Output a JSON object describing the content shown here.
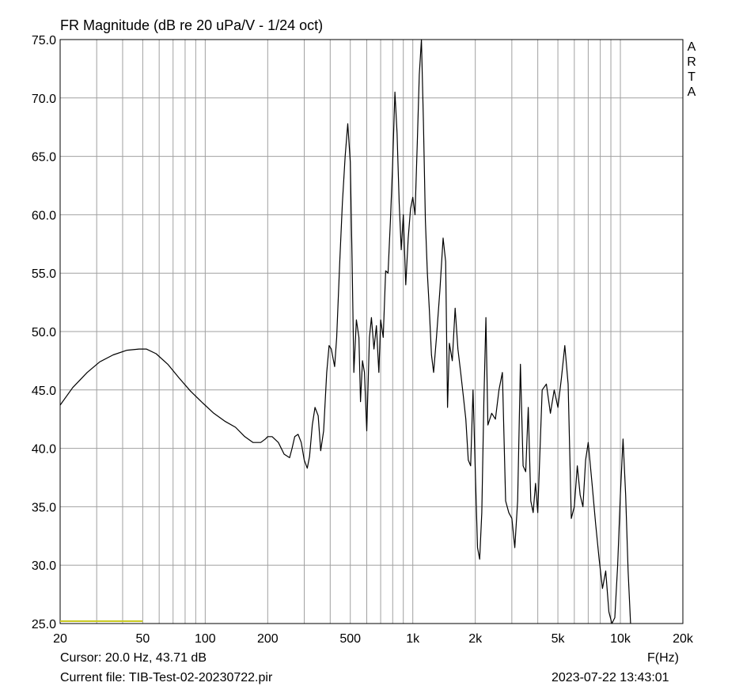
{
  "chart_data": {
    "type": "line",
    "title": "FR Magnitude (dB re 20 uPa/V - 1/24 oct)",
    "xlabel": "F(Hz)",
    "x_scale": "log",
    "xlim": [
      20,
      20000
    ],
    "ylim": [
      25.0,
      75.0
    ],
    "y_ticks": [
      75.0,
      70.0,
      65.0,
      60.0,
      55.0,
      50.0,
      45.0,
      40.0,
      35.0,
      30.0,
      25.0
    ],
    "y_tick_labels": [
      "75.0",
      "70.0",
      "65.0",
      "60.0",
      "55.0",
      "50.0",
      "45.0",
      "40.0",
      "35.0",
      "30.0",
      "25.0"
    ],
    "x_ticks": [
      20,
      50,
      100,
      200,
      500,
      1000,
      2000,
      5000,
      10000,
      20000
    ],
    "x_tick_labels": [
      "20",
      "50",
      "100",
      "200",
      "500",
      "1k",
      "2k",
      "5k",
      "10k",
      "20k"
    ],
    "grid": true,
    "series": [
      {
        "color": "#000000",
        "x": [
          20,
          23,
          27,
          31,
          36,
          42,
          48,
          52,
          58,
          66,
          75,
          85,
          97,
          110,
          125,
          140,
          155,
          170,
          185,
          195,
          200,
          210,
          225,
          240,
          255,
          262,
          270,
          280,
          290,
          300,
          310,
          318,
          328,
          338,
          350,
          360,
          372,
          385,
          395,
          405,
          420,
          430,
          445,
          458,
          472,
          486,
          500,
          510,
          520,
          535,
          550,
          560,
          572,
          585,
          600,
          618,
          632,
          650,
          668,
          686,
          700,
          720,
          740,
          760,
          780,
          800,
          820,
          840,
          860,
          880,
          900,
          925,
          950,
          975,
          1000,
          1025,
          1050,
          1075,
          1100,
          1125,
          1150,
          1175,
          1200,
          1230,
          1260,
          1300,
          1350,
          1400,
          1440,
          1470,
          1500,
          1550,
          1600,
          1650,
          1700,
          1750,
          1800,
          1850,
          1900,
          1950,
          2000,
          2050,
          2100,
          2150,
          2200,
          2250,
          2300,
          2400,
          2500,
          2600,
          2700,
          2800,
          2900,
          3000,
          3100,
          3200,
          3300,
          3400,
          3500,
          3600,
          3700,
          3800,
          3900,
          4000,
          4200,
          4400,
          4600,
          4800,
          5000,
          5200,
          5400,
          5600,
          5800,
          6000,
          6200,
          6400,
          6600,
          6800,
          7000,
          7300,
          7600,
          7900,
          8200,
          8500,
          8800,
          9100,
          9400,
          9700,
          10000,
          10300,
          10600,
          10900,
          11200
        ],
        "y": [
          43.7,
          45.2,
          46.5,
          47.4,
          48.0,
          48.4,
          48.5,
          48.5,
          48.1,
          47.2,
          46.0,
          44.9,
          43.9,
          43.0,
          42.3,
          41.8,
          41.0,
          40.5,
          40.5,
          40.8,
          41.0,
          41.0,
          40.5,
          39.5,
          39.2,
          40.0,
          41.0,
          41.2,
          40.5,
          39.0,
          38.3,
          39.3,
          42.0,
          43.5,
          42.8,
          39.8,
          41.5,
          46.5,
          48.8,
          48.5,
          47.0,
          49.5,
          56.0,
          61.0,
          65.0,
          67.8,
          64.5,
          56.0,
          46.5,
          51.0,
          49.5,
          44.0,
          47.5,
          46.5,
          41.5,
          49.5,
          51.2,
          48.5,
          50.5,
          46.5,
          51.0,
          49.5,
          55.2,
          55.0,
          59.5,
          64.5,
          70.5,
          67.0,
          61.0,
          57.0,
          60.0,
          54.0,
          58.0,
          60.5,
          61.5,
          60.0,
          66.0,
          72.0,
          75.0,
          68.0,
          59.5,
          55.0,
          52.0,
          48.0,
          46.5,
          49.5,
          53.5,
          58.0,
          56.0,
          43.5,
          49.0,
          47.5,
          52.0,
          48.5,
          46.5,
          44.5,
          42.5,
          39.0,
          38.5,
          45.0,
          38.0,
          31.5,
          30.5,
          34.5,
          44.0,
          51.2,
          42.0,
          43.0,
          42.5,
          45.0,
          46.5,
          35.5,
          34.5,
          34.0,
          31.5,
          35.5,
          47.2,
          38.5,
          38.0,
          43.5,
          35.5,
          34.5,
          37.0,
          34.5,
          45.0,
          45.5,
          43.0,
          45.0,
          43.5,
          46.0,
          48.8,
          45.5,
          34.0,
          35.0,
          38.5,
          36.0,
          35.0,
          39.0,
          40.5,
          37.0,
          33.5,
          30.5,
          28.0,
          29.5,
          26.0,
          24.8,
          25.5,
          30.0,
          36.0,
          40.8,
          36.0,
          29.5,
          24.8
        ]
      }
    ],
    "marker": {
      "color": "#c8c820"
    }
  },
  "cursor_text": "Cursor: 20.0 Hz, 43.71 dB",
  "file_text": "Current file: TIB-Test-02-20230722.pir",
  "timestamp_text": "2023-07-22   13:43:01",
  "watermark": [
    "A",
    "R",
    "T",
    "A"
  ]
}
